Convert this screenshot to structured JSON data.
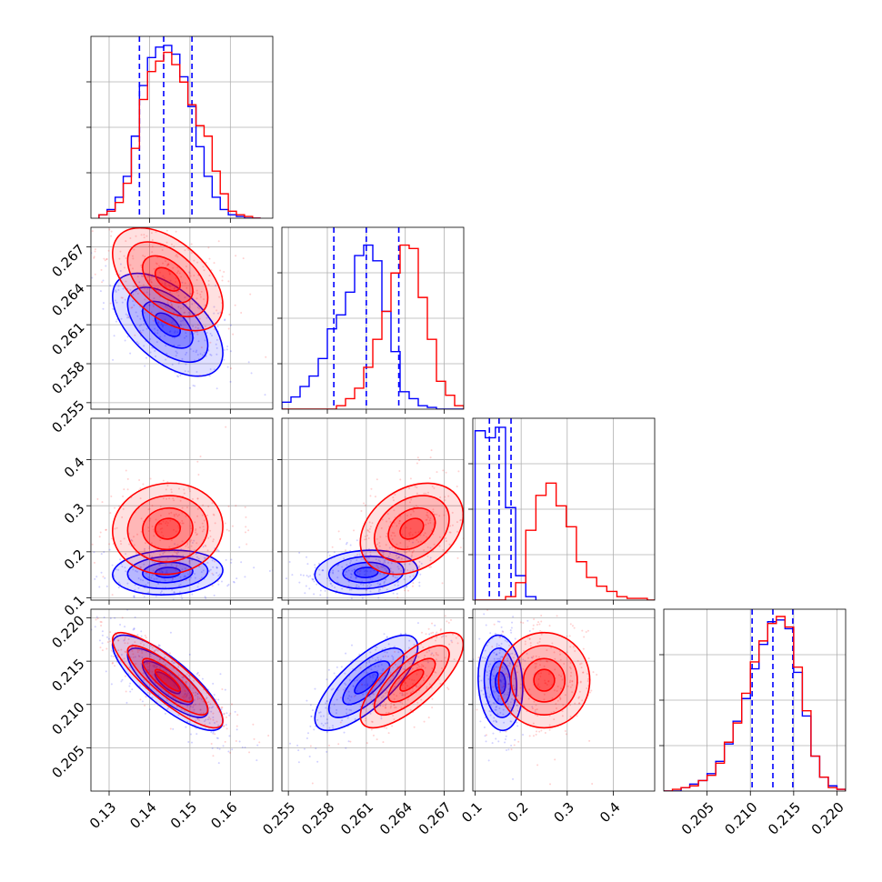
{
  "chart_data": {
    "type": "corner",
    "grid": true,
    "series": [
      {
        "color": "#0000ff",
        "histograms": [
          {
            "bins": [
              0.1275,
              0.1295,
              0.1315,
              0.1335,
              0.1355,
              0.1375,
              0.1395,
              0.1415,
              0.1435,
              0.1455,
              0.1475,
              0.1495,
              0.1515,
              0.1535,
              0.1555,
              0.1575,
              0.1595,
              0.1615,
              0.1635,
              0.1655,
              0.1675
            ],
            "counts": [
              0.02,
              0.05,
              0.12,
              0.24,
              0.47,
              0.76,
              0.92,
              0.98,
              0.99,
              0.94,
              0.81,
              0.64,
              0.41,
              0.24,
              0.12,
              0.05,
              0.02,
              0.01,
              0,
              0
            ]
          },
          {
            "bins": [
              0.2545,
              0.2552,
              0.2559,
              0.2566,
              0.2573,
              0.258,
              0.2587,
              0.2594,
              0.2601,
              0.2608,
              0.2615,
              0.2622,
              0.2629,
              0.2636,
              0.2643,
              0.265,
              0.2657,
              0.2664,
              0.2671,
              0.2678,
              0.2685
            ],
            "counts": [
              0.04,
              0.07,
              0.13,
              0.19,
              0.29,
              0.46,
              0.54,
              0.67,
              0.88,
              0.94,
              0.85,
              0.56,
              0.33,
              0.1,
              0.06,
              0.02,
              0.01,
              0,
              0,
              0
            ]
          },
          {
            "bins": [
              0.1,
              0.122,
              0.144,
              0.166,
              0.188,
              0.21,
              0.232
            ],
            "counts": [
              0.97,
              0.93,
              0.99,
              0.53,
              0.14,
              0.02
            ]
          },
          {
            "bins": [
              0.2,
              0.201,
              0.202,
              0.203,
              0.204,
              0.205,
              0.206,
              0.207,
              0.208,
              0.209,
              0.21,
              0.211,
              0.212,
              0.213,
              0.214,
              0.215,
              0.216,
              0.217,
              0.218,
              0.219,
              0.22,
              0.221
            ],
            "counts": [
              0,
              0,
              0.02,
              0.04,
              0.06,
              0.1,
              0.17,
              0.27,
              0.4,
              0.53,
              0.7,
              0.84,
              0.97,
              0.98,
              0.93,
              0.68,
              0.43,
              0.2,
              0.08,
              0.03,
              0.01
            ]
          }
        ],
        "quantiles": [
          [
            0.1375,
            0.1435,
            0.1505
          ],
          [
            0.2585,
            0.261,
            0.2635
          ],
          [
            0.131,
            0.152,
            0.178
          ],
          [
            0.2102,
            0.2126,
            0.2149
          ]
        ],
        "centers": [
          0.1445,
          0.261,
          0.155,
          0.2125
        ],
        "sigmas": [
          0.0062,
          0.0018,
          0.022,
          0.0025
        ],
        "correlations": {
          "0-1": -0.55,
          "0-2": 0.1,
          "0-3": -0.8,
          "1-2": 0.1,
          "1-3": 0.75,
          "2-3": -0.1
        }
      },
      {
        "color": "#ff0000",
        "histograms": [
          {
            "bins": [
              0.1275,
              0.1295,
              0.1315,
              0.1335,
              0.1355,
              0.1375,
              0.1395,
              0.1415,
              0.1435,
              0.1455,
              0.1475,
              0.1495,
              0.1515,
              0.1535,
              0.1555,
              0.1575,
              0.1595,
              0.1615,
              0.1635,
              0.1655,
              0.1675
            ],
            "counts": [
              0.02,
              0.04,
              0.09,
              0.2,
              0.4,
              0.68,
              0.84,
              0.9,
              0.95,
              0.88,
              0.78,
              0.65,
              0.53,
              0.47,
              0.27,
              0.14,
              0.04,
              0.02,
              0.01,
              0
            ]
          },
          {
            "bins": [
              0.2545,
              0.2552,
              0.2559,
              0.2566,
              0.2573,
              0.258,
              0.2587,
              0.2594,
              0.2601,
              0.2608,
              0.2615,
              0.2622,
              0.2629,
              0.2636,
              0.2643,
              0.265,
              0.2657,
              0.2664,
              0.2671,
              0.2678,
              0.2685
            ],
            "counts": [
              0,
              0,
              0,
              0,
              0,
              0,
              0.02,
              0.06,
              0.12,
              0.24,
              0.4,
              0.56,
              0.78,
              0.94,
              0.92,
              0.64,
              0.4,
              0.16,
              0.08,
              0.02
            ]
          },
          {
            "bins": [
              0.1,
              0.122,
              0.144,
              0.166,
              0.188,
              0.21,
              0.232,
              0.254,
              0.276,
              0.298,
              0.32,
              0.342,
              0.364,
              0.386,
              0.408,
              0.43,
              0.452,
              0.474,
              0.496
            ],
            "counts": [
              0,
              0,
              0,
              0.02,
              0.1,
              0.4,
              0.6,
              0.67,
              0.54,
              0.42,
              0.22,
              0.13,
              0.08,
              0.05,
              0.02,
              0.01,
              0.01,
              0
            ]
          },
          {
            "bins": [
              0.2,
              0.201,
              0.202,
              0.203,
              0.204,
              0.205,
              0.206,
              0.207,
              0.208,
              0.209,
              0.21,
              0.211,
              0.212,
              0.213,
              0.214,
              0.215,
              0.216,
              0.217,
              0.218,
              0.219,
              0.22,
              0.221
            ],
            "counts": [
              0,
              0.01,
              0.02,
              0.03,
              0.06,
              0.09,
              0.16,
              0.28,
              0.39,
              0.56,
              0.74,
              0.86,
              0.96,
              1.0,
              0.94,
              0.71,
              0.46,
              0.2,
              0.08,
              0.02,
              0.01
            ]
          }
        ],
        "centers": [
          0.1445,
          0.2645,
          0.25,
          0.2128
        ],
        "sigmas": [
          0.0062,
          0.0018,
          0.045,
          0.0025
        ],
        "correlations": {
          "0-1": -0.5,
          "0-2": 0.05,
          "0-3": -0.85,
          "1-2": 0.3,
          "1-3": 0.75,
          "2-3": 0.0
        }
      }
    ],
    "axes": [
      {
        "range": [
          0.1255,
          0.1705
        ],
        "tick_values": [
          0.13,
          0.14,
          0.15,
          0.16
        ],
        "tick_labels": [
          "0.13",
          "0.14",
          "0.15",
          "0.16"
        ]
      },
      {
        "range": [
          0.2545,
          0.2685
        ],
        "tick_values": [
          0.255,
          0.258,
          0.261,
          0.264,
          0.267
        ],
        "tick_labels": [
          "0.255",
          "0.258",
          "0.261",
          "0.264",
          "0.267"
        ]
      },
      {
        "range": [
          0.095,
          0.49
        ],
        "tick_values": [
          0.1,
          0.2,
          0.3,
          0.4
        ],
        "tick_labels": [
          "0.1",
          "0.2",
          "0.3",
          "0.4"
        ]
      },
      {
        "range": [
          0.2,
          0.221
        ],
        "tick_values": [
          0.205,
          0.21,
          0.215,
          0.22
        ],
        "tick_labels": [
          "0.205",
          "0.210",
          "0.215",
          "0.220"
        ]
      }
    ]
  }
}
